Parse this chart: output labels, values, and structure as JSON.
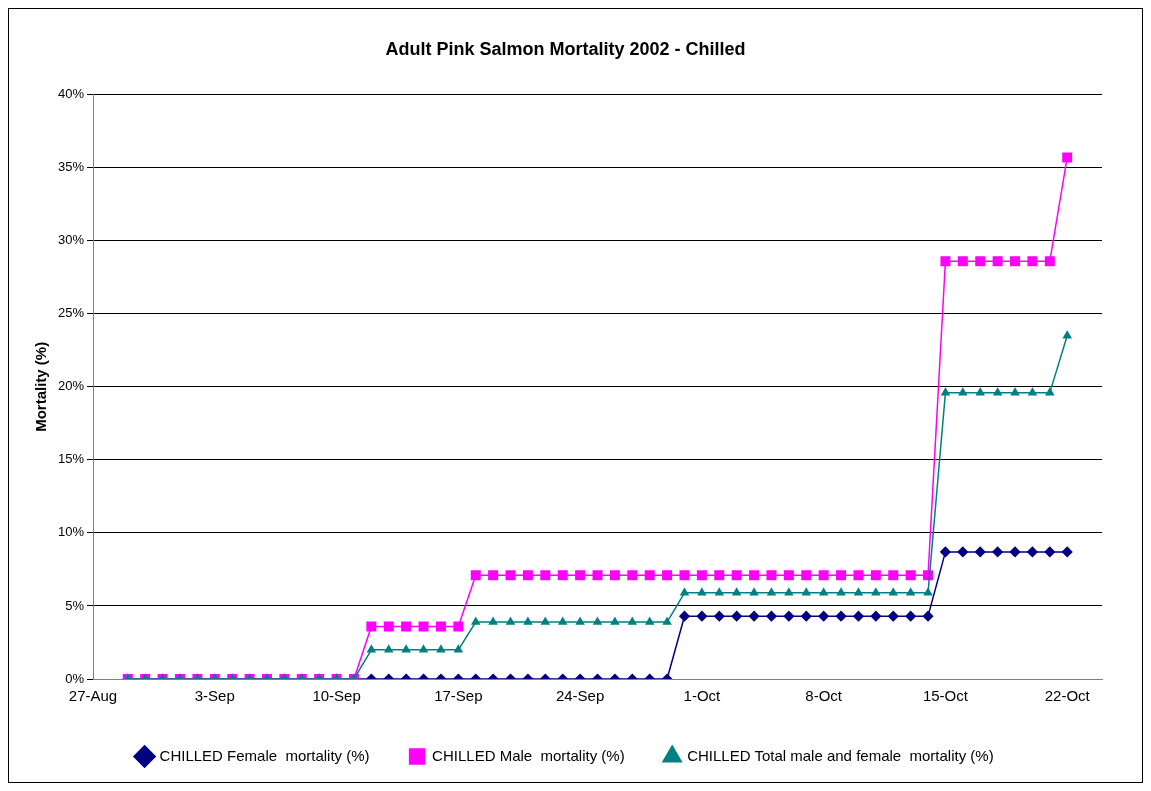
{
  "chart_data": {
    "type": "line",
    "title": "Adult Pink Salmon Mortality 2002 - Chilled",
    "ylabel": "Mortality (%)",
    "x": [
      "2002-08-29",
      "2002-08-30",
      "2002-08-31",
      "2002-09-01",
      "2002-09-02",
      "2002-09-03",
      "2002-09-04",
      "2002-09-05",
      "2002-09-06",
      "2002-09-07",
      "2002-09-08",
      "2002-09-09",
      "2002-09-10",
      "2002-09-11",
      "2002-09-12",
      "2002-09-13",
      "2002-09-14",
      "2002-09-15",
      "2002-09-16",
      "2002-09-17",
      "2002-09-18",
      "2002-09-19",
      "2002-09-20",
      "2002-09-21",
      "2002-09-22",
      "2002-09-23",
      "2002-09-24",
      "2002-09-25",
      "2002-09-26",
      "2002-09-27",
      "2002-09-28",
      "2002-09-29",
      "2002-09-30",
      "2002-10-01",
      "2002-10-02",
      "2002-10-03",
      "2002-10-04",
      "2002-10-05",
      "2002-10-06",
      "2002-10-07",
      "2002-10-08",
      "2002-10-09",
      "2002-10-10",
      "2002-10-11",
      "2002-10-12",
      "2002-10-13",
      "2002-10-14",
      "2002-10-15",
      "2002-10-16",
      "2002-10-17",
      "2002-10-18",
      "2002-10-19",
      "2002-10-20",
      "2002-10-21",
      "2002-10-22"
    ],
    "series": [
      {
        "name": "CHILLED Female  mortality (%)",
        "color": "#000080",
        "marker": "diamond",
        "values": [
          0,
          0,
          0,
          0,
          0,
          0,
          0,
          0,
          0,
          0,
          0,
          0,
          0,
          0,
          0,
          0,
          0,
          0,
          0,
          0,
          0,
          0,
          0,
          0,
          0,
          0,
          0,
          0,
          0,
          0,
          0,
          0,
          4.3,
          4.3,
          4.3,
          4.3,
          4.3,
          4.3,
          4.3,
          4.3,
          4.3,
          4.3,
          4.3,
          4.3,
          4.3,
          4.3,
          4.3,
          8.7,
          8.7,
          8.7,
          8.7,
          8.7,
          8.7,
          8.7,
          8.7
        ]
      },
      {
        "name": "CHILLED Male  mortality (%)",
        "color": "#ff00ff",
        "marker": "square",
        "values": [
          0,
          0,
          0,
          0,
          0,
          0,
          0,
          0,
          0,
          0,
          0,
          0,
          0,
          0,
          3.6,
          3.6,
          3.6,
          3.6,
          3.6,
          3.6,
          7.1,
          7.1,
          7.1,
          7.1,
          7.1,
          7.1,
          7.1,
          7.1,
          7.1,
          7.1,
          7.1,
          7.1,
          7.1,
          7.1,
          7.1,
          7.1,
          7.1,
          7.1,
          7.1,
          7.1,
          7.1,
          7.1,
          7.1,
          7.1,
          7.1,
          7.1,
          7.1,
          28.6,
          28.6,
          28.6,
          28.6,
          28.6,
          28.6,
          28.6,
          35.7
        ]
      },
      {
        "name": "CHILLED Total male and female  mortality (%)",
        "color": "#008080",
        "marker": "triangle",
        "values": [
          0,
          0,
          0,
          0,
          0,
          0,
          0,
          0,
          0,
          0,
          0,
          0,
          0,
          0,
          2.0,
          2.0,
          2.0,
          2.0,
          2.0,
          2.0,
          3.9,
          3.9,
          3.9,
          3.9,
          3.9,
          3.9,
          3.9,
          3.9,
          3.9,
          3.9,
          3.9,
          3.9,
          5.9,
          5.9,
          5.9,
          5.9,
          5.9,
          5.9,
          5.9,
          5.9,
          5.9,
          5.9,
          5.9,
          5.9,
          5.9,
          5.9,
          5.9,
          19.6,
          19.6,
          19.6,
          19.6,
          19.6,
          19.6,
          19.6,
          23.5
        ]
      }
    ],
    "xlim": [
      "2002-08-27",
      "2002-10-24"
    ],
    "xticks": [
      {
        "value": "2002-08-27",
        "label": "27-Aug"
      },
      {
        "value": "2002-09-03",
        "label": "3-Sep"
      },
      {
        "value": "2002-09-10",
        "label": "10-Sep"
      },
      {
        "value": "2002-09-17",
        "label": "17-Sep"
      },
      {
        "value": "2002-09-24",
        "label": "24-Sep"
      },
      {
        "value": "2002-10-01",
        "label": "1-Oct"
      },
      {
        "value": "2002-10-08",
        "label": "8-Oct"
      },
      {
        "value": "2002-10-15",
        "label": "15-Oct"
      },
      {
        "value": "2002-10-22",
        "label": "22-Oct"
      }
    ],
    "ylim": [
      0,
      40
    ],
    "yticks": [
      {
        "value": 0,
        "label": "0%"
      },
      {
        "value": 5,
        "label": "5%"
      },
      {
        "value": 10,
        "label": "10%"
      },
      {
        "value": 15,
        "label": "15%"
      },
      {
        "value": 20,
        "label": "20%"
      },
      {
        "value": 25,
        "label": "25%"
      },
      {
        "value": 30,
        "label": "30%"
      },
      {
        "value": 35,
        "label": "35%"
      },
      {
        "value": 40,
        "label": "40%"
      }
    ],
    "grid": "y",
    "legend": "bottom",
    "line_style": "solid"
  }
}
